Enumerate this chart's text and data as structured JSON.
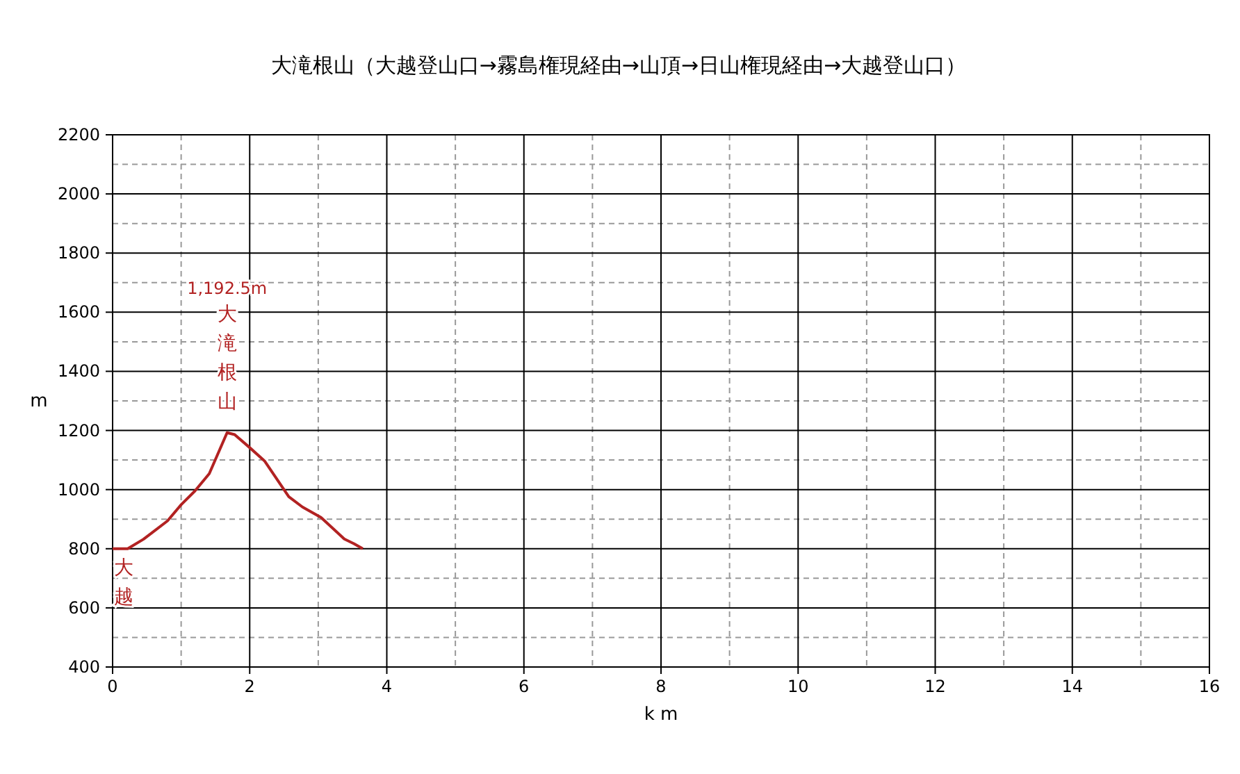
{
  "chart_data": {
    "type": "line",
    "title": "大滝根山（大越登山口→霧島権現経由→山頂→日山権現経由→大越登山口）",
    "xlabel": "k m",
    "ylabel": "m",
    "x": [
      0,
      0.22,
      0.45,
      0.8,
      1.0,
      1.2,
      1.41,
      1.67,
      1.78,
      1.99,
      2.22,
      2.57,
      2.77,
      3.04,
      3.38,
      3.52,
      3.65
    ],
    "series": [
      {
        "color": "#b22222",
        "values": [
          800,
          800,
          832,
          894,
          949,
          995,
          1054,
          1192.5,
          1186,
          1144,
          1096,
          976,
          941,
          906,
          833,
          817,
          800
        ]
      }
    ],
    "xlim": [
      0,
      16
    ],
    "xticks": [
      0,
      2,
      4,
      6,
      8,
      10,
      12,
      14,
      16
    ],
    "ylim": [
      400,
      2200
    ],
    "yticks": [
      400,
      600,
      800,
      1000,
      1200,
      1400,
      1600,
      1800,
      2000,
      2200
    ],
    "grid": true,
    "marker": "none",
    "line_style": "solid",
    "annotations": [
      "1,192.5m",
      "大滝根山",
      "大越"
    ]
  }
}
